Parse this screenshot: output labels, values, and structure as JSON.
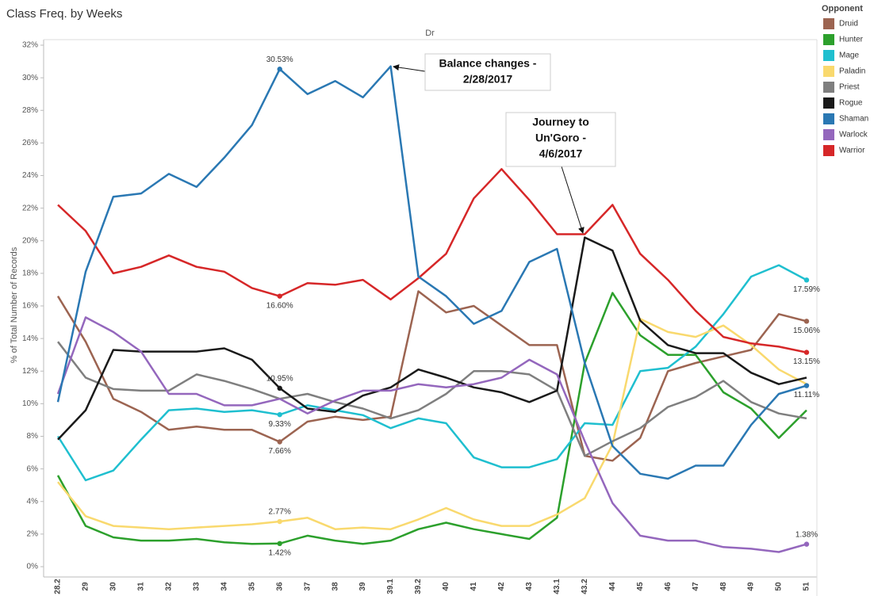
{
  "chart_data": {
    "type": "line",
    "title": "Class Freq. by Weeks",
    "column_header": "Dr",
    "y_label": "% of Total Number of Records",
    "legend_title": "Opponent",
    "categories": [
      "28.2",
      "29",
      "30",
      "31",
      "32",
      "33",
      "34",
      "35",
      "36",
      "37",
      "38",
      "39",
      "39.1",
      "39.2",
      "40",
      "41",
      "42",
      "43",
      "43.1",
      "43.2",
      "44",
      "45",
      "46",
      "47",
      "48",
      "49",
      "50",
      "51"
    ],
    "ylim": [
      0,
      32
    ],
    "yticks": [
      {
        "value": 0,
        "label": "0%"
      },
      {
        "value": 2,
        "label": "2%"
      },
      {
        "value": 4,
        "label": "4%"
      },
      {
        "value": 6,
        "label": "6%"
      },
      {
        "value": 8,
        "label": "8%"
      },
      {
        "value": 10,
        "label": "10%"
      },
      {
        "value": 12,
        "label": "12%"
      },
      {
        "value": 14,
        "label": "14%"
      },
      {
        "value": 16,
        "label": "16%"
      },
      {
        "value": 18,
        "label": "18%"
      },
      {
        "value": 20,
        "label": "20%"
      },
      {
        "value": 22,
        "label": "22%"
      },
      {
        "value": 24,
        "label": "24%"
      },
      {
        "value": 26,
        "label": "26%"
      },
      {
        "value": 28,
        "label": "28%"
      },
      {
        "value": 30,
        "label": "30%"
      },
      {
        "value": 32,
        "label": "32%"
      }
    ],
    "grid": false,
    "legend": "right",
    "series": [
      {
        "name": "Druid",
        "color": "#9c6451",
        "values": [
          16.6,
          13.8,
          10.3,
          9.5,
          8.4,
          8.6,
          8.4,
          8.4,
          7.66,
          8.9,
          9.2,
          9.0,
          9.2,
          16.9,
          15.6,
          16.0,
          14.8,
          13.6,
          13.6,
          6.8,
          6.5,
          7.9,
          12.0,
          12.5,
          12.9,
          13.3,
          15.5,
          15.06
        ],
        "value_labels": [
          null,
          null,
          null,
          null,
          null,
          null,
          null,
          null,
          "7.66%",
          null,
          null,
          null,
          null,
          null,
          null,
          null,
          null,
          null,
          null,
          null,
          null,
          null,
          null,
          null,
          null,
          null,
          null,
          "15.06%"
        ]
      },
      {
        "name": "Hunter",
        "color": "#2ca02c",
        "values": [
          5.6,
          2.5,
          1.8,
          1.6,
          1.6,
          1.7,
          1.5,
          1.4,
          1.42,
          1.9,
          1.6,
          1.4,
          1.6,
          2.3,
          2.7,
          2.3,
          2.0,
          1.7,
          3.0,
          12.5,
          16.8,
          14.2,
          13.0,
          13.0,
          10.7,
          9.7,
          7.9,
          9.6
        ],
        "value_labels": [
          null,
          null,
          null,
          null,
          null,
          null,
          null,
          null,
          "1.42%",
          null,
          null,
          null,
          null,
          null,
          null,
          null,
          null,
          null,
          null,
          null,
          null,
          null,
          null,
          null,
          null,
          null,
          null,
          null
        ]
      },
      {
        "name": "Mage",
        "color": "#1fbfcf",
        "values": [
          8.0,
          5.3,
          5.9,
          7.8,
          9.6,
          9.7,
          9.5,
          9.6,
          9.33,
          9.9,
          9.6,
          9.3,
          8.5,
          9.1,
          8.8,
          6.7,
          6.1,
          6.1,
          6.6,
          8.8,
          8.7,
          12.0,
          12.2,
          13.5,
          15.5,
          17.8,
          18.5,
          17.59
        ],
        "value_labels": [
          null,
          null,
          null,
          null,
          null,
          null,
          null,
          null,
          "9.33%",
          null,
          null,
          null,
          null,
          null,
          null,
          null,
          null,
          null,
          null,
          null,
          null,
          null,
          null,
          null,
          null,
          null,
          null,
          "17.59%"
        ]
      },
      {
        "name": "Paladin",
        "color": "#f9d96e",
        "values": [
          5.2,
          3.1,
          2.5,
          2.4,
          2.3,
          2.4,
          2.5,
          2.6,
          2.77,
          3.0,
          2.3,
          2.4,
          2.3,
          2.9,
          3.6,
          2.9,
          2.5,
          2.5,
          3.2,
          4.2,
          7.5,
          15.2,
          14.4,
          14.1,
          14.8,
          13.6,
          12.1,
          11.2
        ],
        "value_labels": [
          null,
          null,
          null,
          null,
          null,
          null,
          null,
          null,
          "2.77%",
          null,
          null,
          null,
          null,
          null,
          null,
          null,
          null,
          null,
          null,
          null,
          null,
          null,
          null,
          null,
          null,
          null,
          null,
          null
        ]
      },
      {
        "name": "Priest",
        "color": "#7f7f7f",
        "values": [
          13.8,
          11.6,
          10.9,
          10.8,
          10.8,
          11.8,
          11.4,
          10.9,
          10.3,
          10.6,
          10.1,
          9.7,
          9.1,
          9.6,
          10.6,
          12.0,
          12.0,
          11.8,
          10.8,
          6.8,
          7.7,
          8.5,
          9.8,
          10.4,
          11.4,
          10.1,
          9.4,
          9.1
        ]
      },
      {
        "name": "Rogue",
        "color": "#1a1a1a",
        "values": [
          7.8,
          9.6,
          13.3,
          13.2,
          13.2,
          13.2,
          13.4,
          12.7,
          10.95,
          9.7,
          9.5,
          10.5,
          11.0,
          12.1,
          11.6,
          11.0,
          10.7,
          10.1,
          10.8,
          20.2,
          19.4,
          15.1,
          13.6,
          13.1,
          13.1,
          11.9,
          11.2,
          11.6
        ],
        "value_labels": [
          null,
          null,
          null,
          null,
          null,
          null,
          null,
          null,
          "10.95%",
          null,
          null,
          null,
          null,
          null,
          null,
          null,
          null,
          null,
          null,
          null,
          null,
          null,
          null,
          null,
          null,
          null,
          null,
          null
        ]
      },
      {
        "name": "Shaman",
        "color": "#2a78b3",
        "values": [
          10.1,
          18.1,
          22.7,
          22.9,
          24.1,
          23.3,
          25.1,
          27.1,
          30.53,
          29.0,
          29.8,
          28.8,
          30.7,
          17.8,
          16.6,
          14.9,
          15.7,
          18.7,
          19.5,
          12.5,
          7.4,
          5.7,
          5.4,
          6.2,
          6.2,
          8.7,
          10.6,
          11.11
        ],
        "value_labels": [
          null,
          null,
          null,
          null,
          null,
          null,
          null,
          null,
          "30.53%",
          null,
          null,
          null,
          null,
          null,
          null,
          null,
          null,
          null,
          null,
          null,
          null,
          null,
          null,
          null,
          null,
          null,
          null,
          "11.11%"
        ]
      },
      {
        "name": "Warlock",
        "color": "#9467bd",
        "values": [
          10.6,
          15.3,
          14.4,
          13.2,
          10.6,
          10.6,
          9.9,
          9.9,
          10.3,
          9.4,
          10.2,
          10.8,
          10.8,
          11.2,
          11.0,
          11.2,
          11.6,
          12.7,
          11.8,
          7.7,
          3.9,
          1.9,
          1.6,
          1.6,
          1.2,
          1.1,
          0.9,
          1.38
        ],
        "value_labels": [
          null,
          null,
          null,
          null,
          null,
          null,
          null,
          null,
          null,
          null,
          null,
          null,
          null,
          null,
          null,
          null,
          null,
          null,
          null,
          null,
          null,
          null,
          null,
          null,
          null,
          null,
          null,
          "1.38%"
        ]
      },
      {
        "name": "Warrior",
        "color": "#d62728",
        "values": [
          22.2,
          20.6,
          18.0,
          18.4,
          19.1,
          18.4,
          18.1,
          17.1,
          16.6,
          17.4,
          17.3,
          17.6,
          16.4,
          17.7,
          19.2,
          22.6,
          24.4,
          22.5,
          20.4,
          20.4,
          22.2,
          19.2,
          17.6,
          15.7,
          14.1,
          13.7,
          13.5,
          13.15
        ],
        "value_labels": [
          null,
          null,
          null,
          null,
          null,
          null,
          null,
          null,
          "16.60%",
          null,
          null,
          null,
          null,
          null,
          null,
          null,
          null,
          null,
          null,
          null,
          null,
          null,
          null,
          null,
          null,
          null,
          null,
          "13.15%"
        ]
      }
    ],
    "annotations": [
      {
        "lines": [
          "Balance changes -",
          "2/28/2017"
        ]
      },
      {
        "lines": [
          "Journey to",
          "Un'Goro -",
          "4/6/2017"
        ]
      }
    ]
  }
}
